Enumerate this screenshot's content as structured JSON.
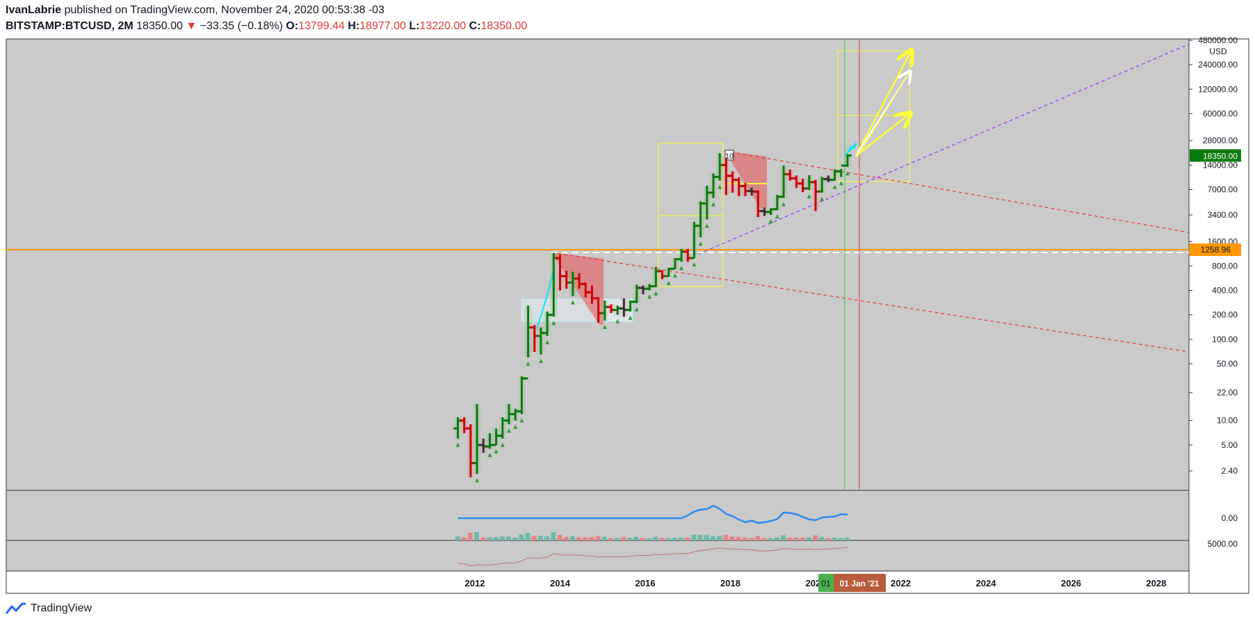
{
  "header": {
    "author": "IvanLabrie",
    "published_text": "published on TradingView.com, November 24, 2020 00:53:38 -03",
    "symbol": "BITSTAMP:BTCUSD, 2M",
    "price": "18350.00",
    "change": "−33.35 (−0.18%)",
    "open_label": "O:",
    "open": "13799.44",
    "high_label": "H:",
    "high": "18977.00",
    "low_label": "L:",
    "low": "13220.00",
    "close_label": "C:",
    "close": "18350.00"
  },
  "brand": {
    "name": "TradingView"
  },
  "colors": {
    "pane_bg": "#cacaca",
    "up": "#0a7a0a",
    "down": "#cc0000",
    "neutral": "#333333",
    "trend_red": "#e8474c",
    "trend_purple": "#9b30ff",
    "yellow": "#ffff33",
    "cyan": "#00e5ff",
    "orange": "#ff9800",
    "line_blue": "#2d8cf0",
    "vline_green": "#33cc33",
    "vline_red": "#e53935"
  },
  "chart_data": {
    "type": "ohlc",
    "scale": "log",
    "currency_label": "USD",
    "ylim": [
      1.5,
      600000
    ],
    "y_ticks": [
      "480000.00",
      "240000.00",
      "120000.00",
      "60000.00",
      "28000.00",
      "14000.00",
      "7000.00",
      "3400.00",
      "1600.00",
      "800.00",
      "400.00",
      "200.00",
      "100.00",
      "50.00",
      "22.00",
      "10.00",
      "5.00",
      "2.40"
    ],
    "x_ticks": [
      "2012",
      "2014",
      "2016",
      "2018",
      "2020",
      "2022",
      "2024",
      "2026",
      "2028"
    ],
    "xlim": [
      2011.0,
      2028.8
    ],
    "last_price_label": "18350.00",
    "level_label": "1258.96",
    "level_value": 1258.96,
    "date_badges": [
      "01",
      "01 Jan '21"
    ],
    "osc_tick": "0.00",
    "vol_tick": "5000.00",
    "series": [
      {
        "t": 2011.6,
        "o": 8,
        "h": 11,
        "l": 6,
        "c": 10
      },
      {
        "t": 2011.75,
        "o": 10,
        "h": 11,
        "l": 7,
        "c": 8
      },
      {
        "t": 2011.9,
        "o": 8,
        "h": 9,
        "l": 2,
        "c": 3
      },
      {
        "t": 2012.05,
        "o": 3,
        "h": 16,
        "l": 2.2,
        "c": 5
      },
      {
        "t": 2012.2,
        "o": 5,
        "h": 6,
        "l": 4,
        "c": 4.8
      },
      {
        "t": 2012.35,
        "o": 4.8,
        "h": 7,
        "l": 4.5,
        "c": 5
      },
      {
        "t": 2012.5,
        "o": 5,
        "h": 8,
        "l": 5,
        "c": 6.5
      },
      {
        "t": 2012.65,
        "o": 6.5,
        "h": 11,
        "l": 6,
        "c": 10
      },
      {
        "t": 2012.8,
        "o": 10,
        "h": 16,
        "l": 9,
        "c": 12
      },
      {
        "t": 2012.95,
        "o": 12,
        "h": 14,
        "l": 10,
        "c": 13
      },
      {
        "t": 2013.1,
        "o": 13,
        "h": 35,
        "l": 12,
        "c": 33
      },
      {
        "t": 2013.25,
        "o": 33,
        "h": 260,
        "l": 60,
        "c": 140
      },
      {
        "t": 2013.4,
        "o": 140,
        "h": 150,
        "l": 70,
        "c": 110
      },
      {
        "t": 2013.55,
        "o": 110,
        "h": 140,
        "l": 65,
        "c": 120
      },
      {
        "t": 2013.7,
        "o": 120,
        "h": 220,
        "l": 110,
        "c": 200
      },
      {
        "t": 2013.85,
        "o": 200,
        "h": 1160,
        "l": 190,
        "c": 1000
      },
      {
        "t": 2014.0,
        "o": 1000,
        "h": 1100,
        "l": 400,
        "c": 600
      },
      {
        "t": 2014.15,
        "o": 600,
        "h": 700,
        "l": 420,
        "c": 500
      },
      {
        "t": 2014.3,
        "o": 500,
        "h": 680,
        "l": 340,
        "c": 560
      },
      {
        "t": 2014.45,
        "o": 560,
        "h": 650,
        "l": 420,
        "c": 480
      },
      {
        "t": 2014.6,
        "o": 480,
        "h": 500,
        "l": 330,
        "c": 380
      },
      {
        "t": 2014.75,
        "o": 380,
        "h": 460,
        "l": 275,
        "c": 320
      },
      {
        "t": 2014.9,
        "o": 320,
        "h": 330,
        "l": 160,
        "c": 210
      },
      {
        "t": 2015.05,
        "o": 210,
        "h": 300,
        "l": 170,
        "c": 250
      },
      {
        "t": 2015.2,
        "o": 250,
        "h": 270,
        "l": 210,
        "c": 230
      },
      {
        "t": 2015.35,
        "o": 230,
        "h": 260,
        "l": 200,
        "c": 240
      },
      {
        "t": 2015.5,
        "o": 240,
        "h": 320,
        "l": 190,
        "c": 230
      },
      {
        "t": 2015.65,
        "o": 230,
        "h": 300,
        "l": 220,
        "c": 290
      },
      {
        "t": 2015.8,
        "o": 290,
        "h": 470,
        "l": 280,
        "c": 430
      },
      {
        "t": 2015.95,
        "o": 430,
        "h": 460,
        "l": 360,
        "c": 420
      },
      {
        "t": 2016.1,
        "o": 420,
        "h": 480,
        "l": 400,
        "c": 450
      },
      {
        "t": 2016.25,
        "o": 450,
        "h": 780,
        "l": 440,
        "c": 690
      },
      {
        "t": 2016.4,
        "o": 690,
        "h": 700,
        "l": 550,
        "c": 600
      },
      {
        "t": 2016.55,
        "o": 600,
        "h": 760,
        "l": 590,
        "c": 740
      },
      {
        "t": 2016.7,
        "o": 740,
        "h": 1000,
        "l": 730,
        "c": 970
      },
      {
        "t": 2016.85,
        "o": 970,
        "h": 1300,
        "l": 900,
        "c": 1200
      },
      {
        "t": 2017.0,
        "o": 1200,
        "h": 1300,
        "l": 900,
        "c": 1000
      },
      {
        "t": 2017.15,
        "o": 1000,
        "h": 2800,
        "l": 1000,
        "c": 2500
      },
      {
        "t": 2017.3,
        "o": 2500,
        "h": 5000,
        "l": 1800,
        "c": 4700
      },
      {
        "t": 2017.45,
        "o": 4700,
        "h": 7800,
        "l": 3000,
        "c": 6400
      },
      {
        "t": 2017.6,
        "o": 6400,
        "h": 11000,
        "l": 5500,
        "c": 10000
      },
      {
        "t": 2017.75,
        "o": 10000,
        "h": 19600,
        "l": 9000,
        "c": 14000
      },
      {
        "t": 2017.9,
        "o": 14000,
        "h": 17000,
        "l": 6000,
        "c": 10300
      },
      {
        "t": 2018.05,
        "o": 10300,
        "h": 11700,
        "l": 6400,
        "c": 9200
      },
      {
        "t": 2018.2,
        "o": 9200,
        "h": 9900,
        "l": 5800,
        "c": 7700
      },
      {
        "t": 2018.35,
        "o": 7700,
        "h": 8400,
        "l": 5800,
        "c": 6700
      },
      {
        "t": 2018.5,
        "o": 6700,
        "h": 7400,
        "l": 5900,
        "c": 6600
      },
      {
        "t": 2018.65,
        "o": 6600,
        "h": 6800,
        "l": 3200,
        "c": 3800
      },
      {
        "t": 2018.8,
        "o": 3800,
        "h": 4200,
        "l": 3300,
        "c": 3700
      },
      {
        "t": 2018.95,
        "o": 3700,
        "h": 4100,
        "l": 3400,
        "c": 4000
      },
      {
        "t": 2019.1,
        "o": 4000,
        "h": 6000,
        "l": 3900,
        "c": 5700
      },
      {
        "t": 2019.25,
        "o": 5700,
        "h": 13800,
        "l": 5500,
        "c": 10800
      },
      {
        "t": 2019.4,
        "o": 10800,
        "h": 12300,
        "l": 9000,
        "c": 9600
      },
      {
        "t": 2019.55,
        "o": 9600,
        "h": 10400,
        "l": 7300,
        "c": 8300
      },
      {
        "t": 2019.7,
        "o": 8300,
        "h": 9500,
        "l": 6500,
        "c": 7200
      },
      {
        "t": 2019.85,
        "o": 7200,
        "h": 10500,
        "l": 6900,
        "c": 8600
      },
      {
        "t": 2020.0,
        "o": 8600,
        "h": 9200,
        "l": 3800,
        "c": 6600
      },
      {
        "t": 2020.15,
        "o": 6600,
        "h": 10000,
        "l": 6400,
        "c": 9400
      },
      {
        "t": 2020.3,
        "o": 9400,
        "h": 10400,
        "l": 8600,
        "c": 9200
      },
      {
        "t": 2020.45,
        "o": 9200,
        "h": 12400,
        "l": 9000,
        "c": 11700
      },
      {
        "t": 2020.6,
        "o": 11700,
        "h": 12500,
        "l": 10000,
        "c": 13800
      },
      {
        "t": 2020.75,
        "o": 13799.44,
        "h": 18977,
        "l": 13220,
        "c": 18350
      }
    ]
  }
}
